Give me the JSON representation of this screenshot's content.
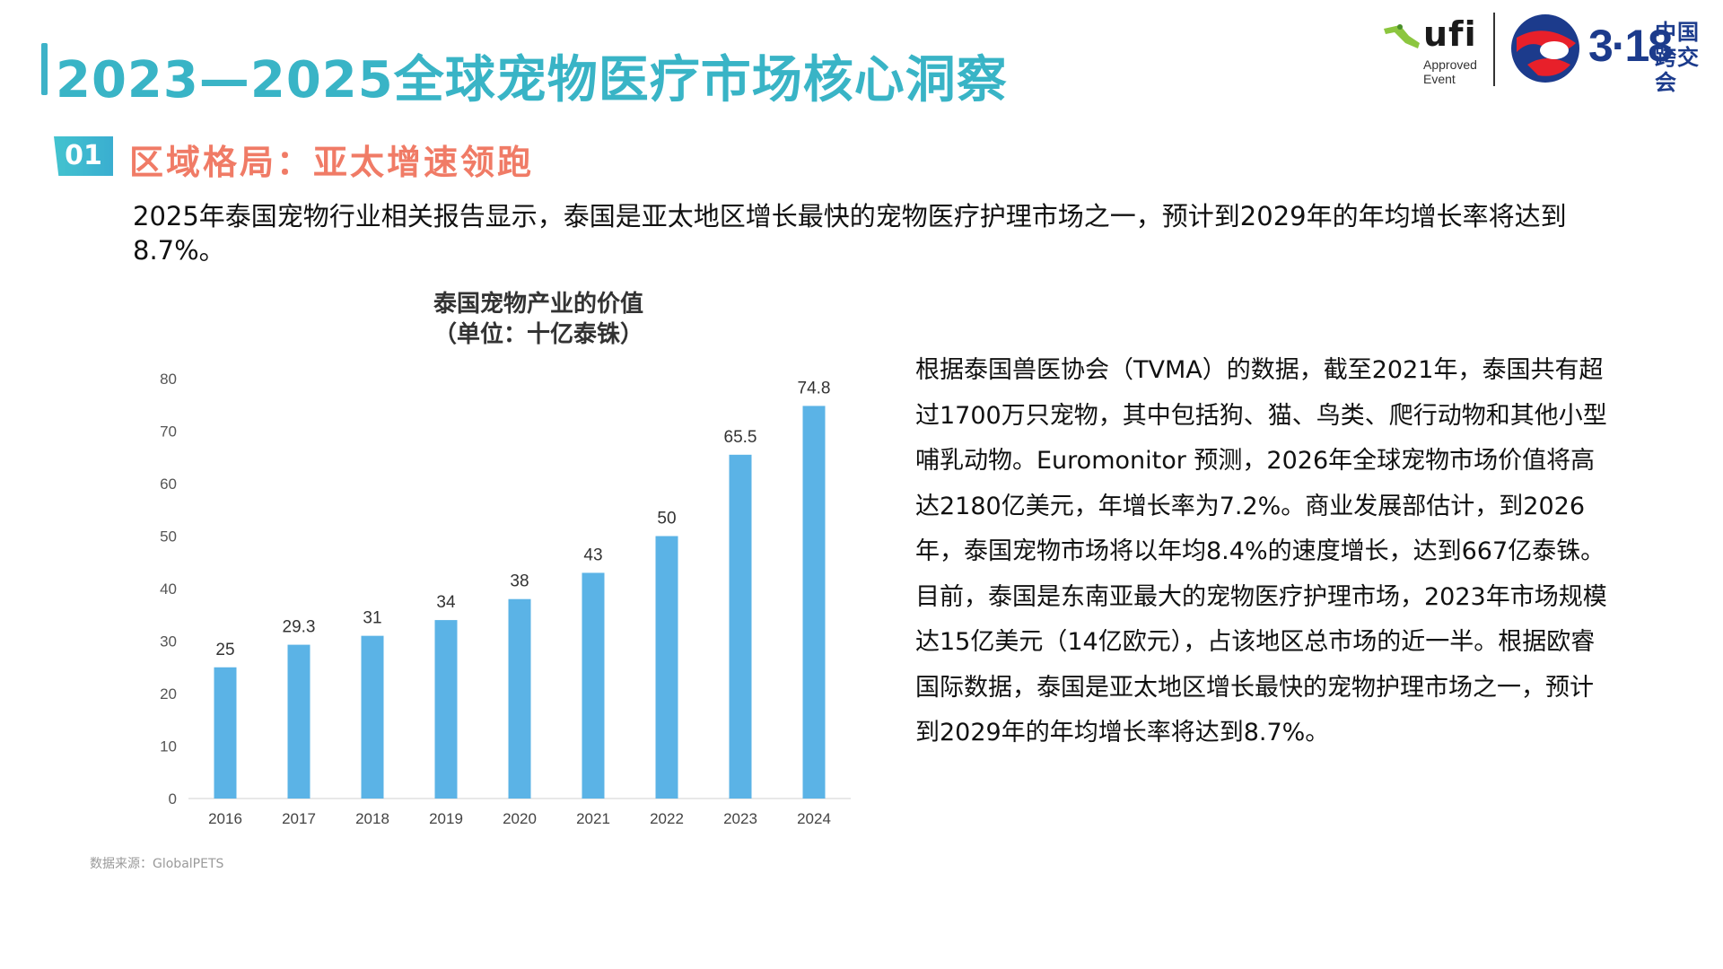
{
  "header": {
    "title": "2023—2025全球宠物医疗市场核心洞察"
  },
  "logos": {
    "ufi_text": "ufi",
    "ufi_sub_line1": "Approved",
    "ufi_sub_line2": "Event",
    "expo_number": "3·18",
    "expo_cn_line1": "中国",
    "expo_cn_line2": "跨交会"
  },
  "section": {
    "number": "01",
    "title": "区域格局：亚太增速领跑"
  },
  "intro_text": "2025年泰国宠物行业相关报告显示，泰国是亚太地区增长最快的宠物医疗护理市场之一，预计到2029年的年均增长率将达到8.7%。",
  "chart_data": {
    "type": "bar",
    "title_line1": "泰国宠物产业的价值",
    "title_line2": "（单位：十亿泰铢）",
    "categories": [
      "2016",
      "2017",
      "2018",
      "2019",
      "2020",
      "2021",
      "2022",
      "2023",
      "2024"
    ],
    "values": [
      25,
      29.3,
      31,
      34,
      38,
      43,
      50,
      65.5,
      74.8
    ],
    "data_labels": [
      "25",
      "29.3",
      "31",
      "34",
      "38",
      "43",
      "50",
      "65.5",
      "74.8"
    ],
    "ylim": [
      0,
      80
    ],
    "yticks": [
      0,
      10,
      20,
      30,
      40,
      50,
      60,
      70,
      80
    ],
    "bar_color": "#5bb3e6",
    "grid": false,
    "legend": "none"
  },
  "source_note": "数据来源：GlobalPETS",
  "body": {
    "paragraph1": "根据泰国兽医协会（TVMA）的数据，截至2021年，泰国共有超过1700万只宠物，其中包括狗、猫、鸟类、爬行动物和其他小型哺乳动物。Euromonitor 预测，2026年全球宠物市场价值将高达2180亿美元，年增长率为7.2%。商业发展部估计，到2026年，泰国宠物市场将以年均8.4%的速度增长，达到667亿泰铢。",
    "paragraph2": "目前，泰国是东南亚最大的宠物医疗护理市场，2023年市场规模达15亿美元（14亿欧元），占该地区总市场的近一半。根据欧睿国际数据，泰国是亚太地区增长最快的宠物护理市场之一，预计到2029年的年均增长率将达到8.7%。"
  },
  "colors": {
    "title": "#39b4c6",
    "section_title": "#f07b66",
    "badge": "#3fb8d0",
    "bars": "#5bb3e6"
  }
}
